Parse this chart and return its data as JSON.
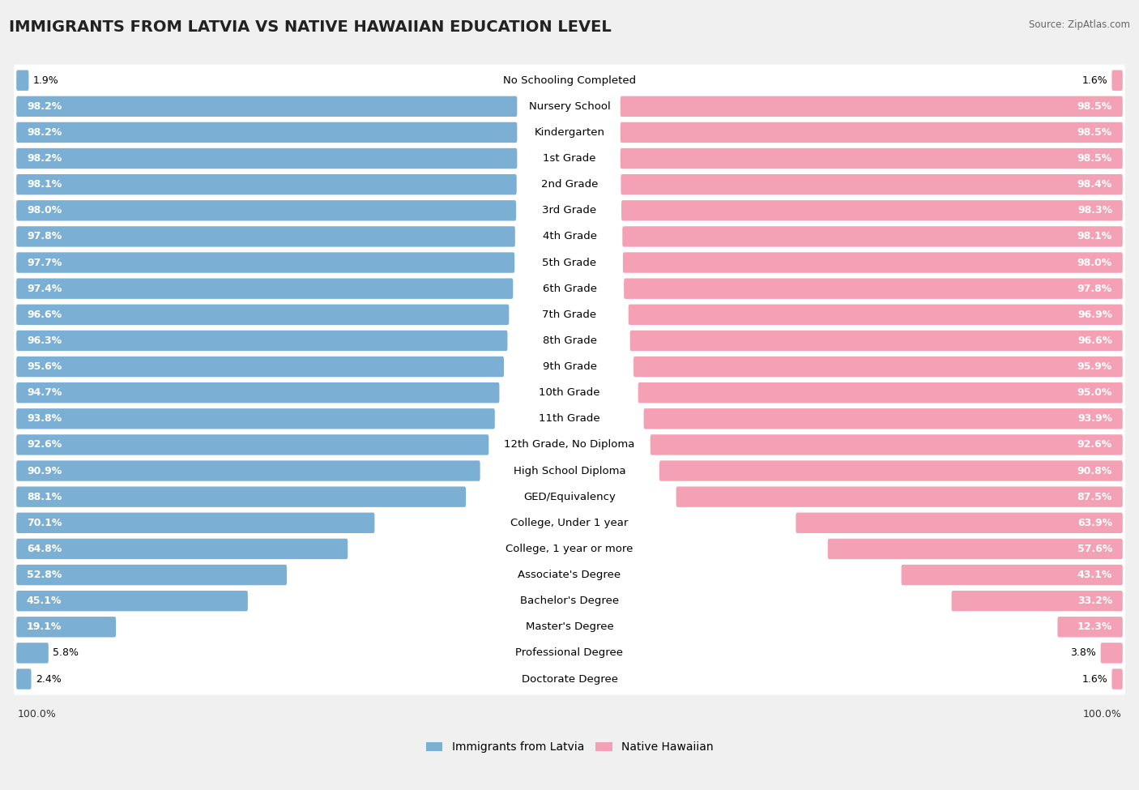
{
  "title": "IMMIGRANTS FROM LATVIA VS NATIVE HAWAIIAN EDUCATION LEVEL",
  "source": "Source: ZipAtlas.com",
  "categories": [
    "No Schooling Completed",
    "Nursery School",
    "Kindergarten",
    "1st Grade",
    "2nd Grade",
    "3rd Grade",
    "4th Grade",
    "5th Grade",
    "6th Grade",
    "7th Grade",
    "8th Grade",
    "9th Grade",
    "10th Grade",
    "11th Grade",
    "12th Grade, No Diploma",
    "High School Diploma",
    "GED/Equivalency",
    "College, Under 1 year",
    "College, 1 year or more",
    "Associate's Degree",
    "Bachelor's Degree",
    "Master's Degree",
    "Professional Degree",
    "Doctorate Degree"
  ],
  "latvia_values": [
    1.9,
    98.2,
    98.2,
    98.2,
    98.1,
    98.0,
    97.8,
    97.7,
    97.4,
    96.6,
    96.3,
    95.6,
    94.7,
    93.8,
    92.6,
    90.9,
    88.1,
    70.1,
    64.8,
    52.8,
    45.1,
    19.1,
    5.8,
    2.4
  ],
  "hawaiian_values": [
    1.6,
    98.5,
    98.5,
    98.5,
    98.4,
    98.3,
    98.1,
    98.0,
    97.8,
    96.9,
    96.6,
    95.9,
    95.0,
    93.9,
    92.6,
    90.8,
    87.5,
    63.9,
    57.6,
    43.1,
    33.2,
    12.3,
    3.8,
    1.6
  ],
  "latvia_color": "#7bafd4",
  "hawaiian_color": "#f4a0b5",
  "background_color": "#f0f0f0",
  "bar_background": "#ffffff",
  "title_fontsize": 14,
  "label_fontsize": 9.5,
  "value_fontsize": 9.0,
  "legend_fontsize": 10
}
